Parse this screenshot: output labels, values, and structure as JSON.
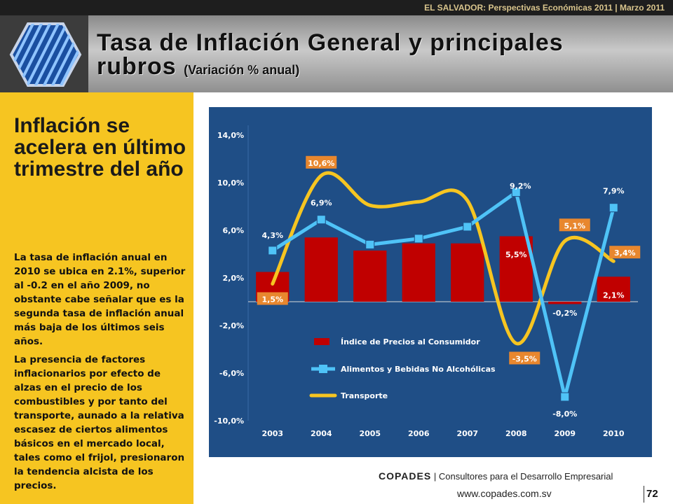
{
  "top_tag": "EL SALVADOR: Perspectivas Económicas 2011 | Marzo 2011",
  "title_line1": "Tasa de Inflación General y principales",
  "title_line2": "rubros",
  "title_sub": "(Variación % anual)",
  "sidebar": {
    "headline": "Inflación se acelera en último trimestre del año",
    "paragraph1": "La tasa de inflación anual en 2010 se ubica en 2.1%, superior al -0.2 en el año 2009, no obstante cabe señalar que es la segunda tasa de inflación anual más baja de los últimos seis años.",
    "paragraph2": "La presencia de factores inflacionarios por efecto de alzas en el precio de los combustibles y por tanto del transporte, aunado a la relativa escasez de ciertos alimentos básicos en el mercado local, tales como el frijol, presionaron la tendencia alcista de los precios."
  },
  "chart_data": {
    "type": "bar",
    "categories": [
      "2003",
      "2004",
      "2005",
      "2006",
      "2007",
      "2008",
      "2009",
      "2010"
    ],
    "y_ticks": [
      "14,0%",
      "10,0%",
      "6,0%",
      "2,0%",
      "-2,0%",
      "-6,0%",
      "-10,0%"
    ],
    "ylim": [
      -10,
      14
    ],
    "legend_position": "bottom-left-inside",
    "series": [
      {
        "name": "Índice de Precios al Consumidor",
        "type": "bar",
        "color": "#c00000",
        "values": [
          2.5,
          5.4,
          4.3,
          4.9,
          4.9,
          5.5,
          -0.2,
          2.1
        ],
        "labels": [
          "",
          "",
          "",
          "",
          "",
          "5,5%",
          "-0,2%",
          "2,1%"
        ]
      },
      {
        "name": "Alimentos y Bebidas No Alcohólicas",
        "type": "line",
        "color": "#4fc3f7",
        "values": [
          4.3,
          6.9,
          4.8,
          5.3,
          6.3,
          9.2,
          -8.0,
          7.9
        ],
        "labels": [
          "4,3%",
          "6,9%",
          "",
          "",
          "",
          "9,2%",
          "-8,0%",
          "7,9%"
        ]
      },
      {
        "name": "Transporte",
        "type": "line-smooth",
        "color": "#f6c521",
        "values": [
          1.5,
          10.6,
          8.1,
          8.4,
          8.5,
          -3.5,
          5.1,
          3.4
        ],
        "labels": [
          "1,5%",
          "10,6%",
          "",
          "",
          "",
          "-3,5%",
          "5,1%",
          "3,4%"
        ]
      }
    ]
  },
  "footer": {
    "brand": "COPADES",
    "separator": "|",
    "tagline": "Consultores para el Desarrollo Empresarial",
    "url": "www.copades.com.sv",
    "page": "72"
  }
}
